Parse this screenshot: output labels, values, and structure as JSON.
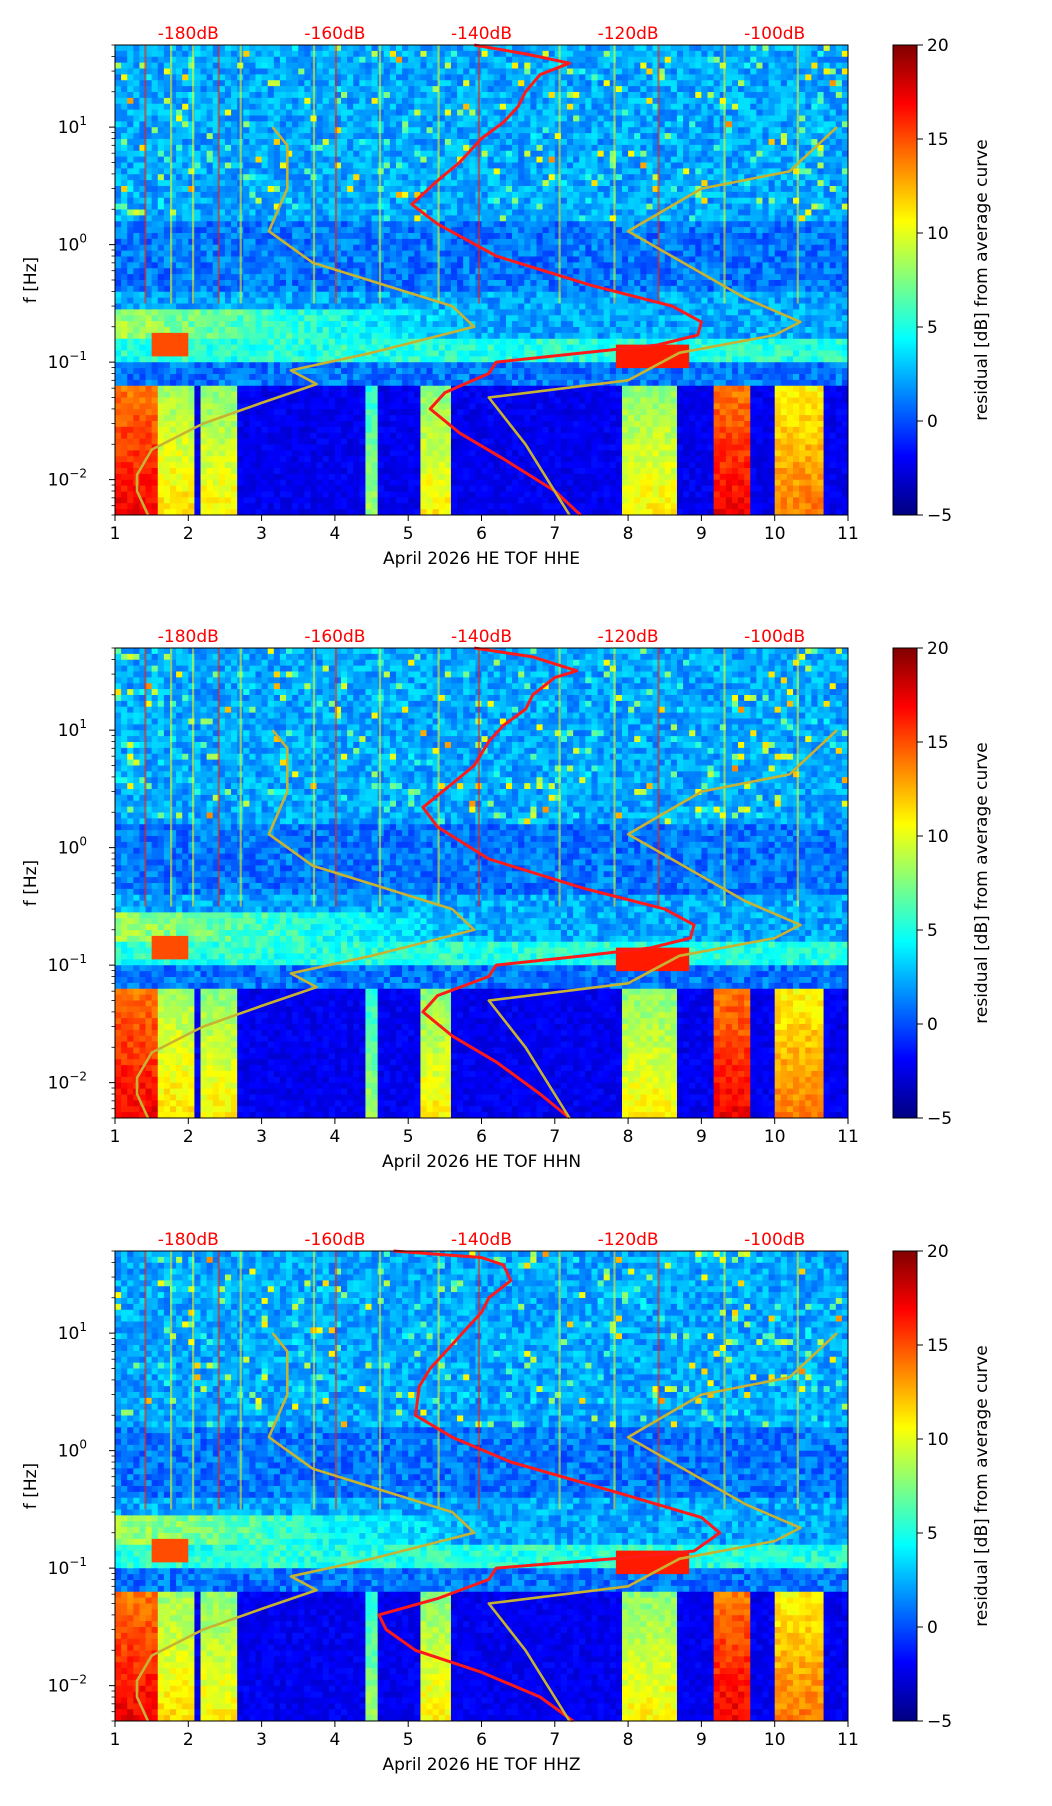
{
  "colors": {
    "curve_average": "#ff1a1a",
    "curve_model": "#c8b232",
    "top_label": "#ff0000",
    "colormap": [
      "#00007f",
      "#0000ff",
      "#007fff",
      "#00ffff",
      "#7fff7f",
      "#ffff00",
      "#ff7f00",
      "#ff0000",
      "#7f0000"
    ]
  },
  "shared": {
    "ylabel": "f [Hz]",
    "colorbar_label": "residual [dB] from average curve",
    "colorbar_range": [
      -5,
      20
    ],
    "colorbar_ticks": [
      "20",
      "15",
      "10",
      "5",
      "0",
      "−5"
    ],
    "x_ticks": [
      "1",
      "2",
      "3",
      "4",
      "5",
      "6",
      "7",
      "8",
      "9",
      "10",
      "11"
    ],
    "y_ticks": [
      {
        "base": "10",
        "exp": "1",
        "value": 10
      },
      {
        "base": "10",
        "exp": "0",
        "value": 1
      },
      {
        "base": "10",
        "exp": "−1",
        "value": 0.1
      },
      {
        "base": "10",
        "exp": "−2",
        "value": 0.01
      }
    ],
    "top_ticks": [
      {
        "label": "-180dB",
        "day": 2.0
      },
      {
        "label": "-160dB",
        "day": 4.0
      },
      {
        "label": "-140dB",
        "day": 6.0
      },
      {
        "label": "-120dB",
        "day": 8.0
      },
      {
        "label": "-100dB",
        "day": 10.0
      }
    ]
  },
  "chart_data": [
    {
      "type": "heatmap",
      "title": "",
      "xlabel": "April 2026 HE TOF  HHE",
      "ylabel": "f [Hz]",
      "xlim": [
        1,
        11
      ],
      "ylim_hz": [
        0.005,
        50
      ],
      "yscale": "log",
      "colorbar": {
        "label": "residual [dB] from average curve",
        "min": -5,
        "max": 20
      },
      "top_axis": {
        "labels": [
          "-180dB",
          "-160dB",
          "-140dB",
          "-120dB",
          "-100dB"
        ],
        "db_values": [
          -180,
          -160,
          -140,
          -120,
          -100
        ]
      },
      "series": [
        {
          "name": "average PSD curve",
          "color": "#ff1a1a",
          "points": [
            [
              7.35,
              0.005
            ],
            [
              7.0,
              0.008
            ],
            [
              6.3,
              0.015
            ],
            [
              5.7,
              0.025
            ],
            [
              5.3,
              0.04
            ],
            [
              5.5,
              0.055
            ],
            [
              6.1,
              0.08
            ],
            [
              6.2,
              0.1
            ],
            [
              7.4,
              0.12
            ],
            [
              8.4,
              0.14
            ],
            [
              8.95,
              0.17
            ],
            [
              9.0,
              0.22
            ],
            [
              8.6,
              0.3
            ],
            [
              7.5,
              0.45
            ],
            [
              6.2,
              0.8
            ],
            [
              5.4,
              1.5
            ],
            [
              5.05,
              2.2
            ],
            [
              5.4,
              3.5
            ],
            [
              5.7,
              5
            ],
            [
              6.0,
              8
            ],
            [
              6.3,
              11
            ],
            [
              6.5,
              15
            ],
            [
              6.6,
              20
            ],
            [
              6.8,
              28
            ],
            [
              7.2,
              35
            ],
            [
              6.6,
              42
            ],
            [
              5.9,
              50
            ]
          ]
        },
        {
          "name": "noise model curve",
          "color": "#c8b232",
          "points": [
            [
              1.45,
              0.005
            ],
            [
              1.3,
              0.008
            ],
            [
              1.3,
              0.011
            ],
            [
              1.5,
              0.018
            ],
            [
              2.2,
              0.03
            ],
            [
              3.0,
              0.045
            ],
            [
              3.75,
              0.065
            ],
            [
              3.4,
              0.085
            ],
            [
              4.5,
              0.12
            ],
            [
              5.9,
              0.2
            ],
            [
              5.6,
              0.3
            ],
            [
              3.7,
              0.7
            ],
            [
              3.1,
              1.3
            ],
            [
              3.35,
              3
            ],
            [
              3.35,
              7
            ],
            [
              3.15,
              10
            ]
          ]
        },
        {
          "name": "noise model curve (high)",
          "color": "#c8b232",
          "points": [
            [
              7.2,
              0.005
            ],
            [
              6.6,
              0.02
            ],
            [
              6.1,
              0.05
            ],
            [
              8.0,
              0.07
            ],
            [
              8.7,
              0.12
            ],
            [
              10.0,
              0.17
            ],
            [
              10.35,
              0.22
            ],
            [
              9.6,
              0.35
            ],
            [
              8.0,
              1.3
            ],
            [
              9.0,
              3
            ],
            [
              10.2,
              4.2
            ],
            [
              10.85,
              10
            ]
          ]
        }
      ]
    },
    {
      "type": "heatmap",
      "title": "",
      "xlabel": "April 2026 HE TOF  HHN",
      "ylabel": "f [Hz]",
      "xlim": [
        1,
        11
      ],
      "ylim_hz": [
        0.005,
        50
      ],
      "yscale": "log",
      "colorbar": {
        "label": "residual [dB] from average curve",
        "min": -5,
        "max": 20
      },
      "top_axis": {
        "labels": [
          "-180dB",
          "-160dB",
          "-140dB",
          "-120dB",
          "-100dB"
        ],
        "db_values": [
          -180,
          -160,
          -140,
          -120,
          -100
        ]
      },
      "series": [
        {
          "name": "average PSD curve",
          "color": "#ff1a1a",
          "points": [
            [
              7.2,
              0.005
            ],
            [
              6.8,
              0.008
            ],
            [
              6.2,
              0.015
            ],
            [
              5.6,
              0.025
            ],
            [
              5.2,
              0.04
            ],
            [
              5.4,
              0.055
            ],
            [
              6.1,
              0.08
            ],
            [
              6.2,
              0.1
            ],
            [
              7.4,
              0.12
            ],
            [
              8.3,
              0.14
            ],
            [
              8.85,
              0.17
            ],
            [
              8.9,
              0.22
            ],
            [
              8.5,
              0.3
            ],
            [
              7.4,
              0.45
            ],
            [
              6.1,
              0.8
            ],
            [
              5.4,
              1.5
            ],
            [
              5.2,
              2.2
            ],
            [
              5.6,
              3.5
            ],
            [
              5.9,
              5
            ],
            [
              6.1,
              8
            ],
            [
              6.3,
              11
            ],
            [
              6.6,
              15
            ],
            [
              6.7,
              20
            ],
            [
              7.0,
              28
            ],
            [
              7.3,
              32
            ],
            [
              6.7,
              42
            ],
            [
              5.9,
              50
            ]
          ]
        },
        {
          "name": "noise model curve",
          "color": "#c8b232",
          "points": [
            [
              1.45,
              0.005
            ],
            [
              1.3,
              0.008
            ],
            [
              1.3,
              0.011
            ],
            [
              1.5,
              0.018
            ],
            [
              2.2,
              0.03
            ],
            [
              3.0,
              0.045
            ],
            [
              3.75,
              0.065
            ],
            [
              3.4,
              0.085
            ],
            [
              4.5,
              0.12
            ],
            [
              5.9,
              0.2
            ],
            [
              5.6,
              0.3
            ],
            [
              3.7,
              0.7
            ],
            [
              3.1,
              1.3
            ],
            [
              3.35,
              3
            ],
            [
              3.35,
              7
            ],
            [
              3.15,
              10
            ]
          ]
        },
        {
          "name": "noise model curve (high)",
          "color": "#c8b232",
          "points": [
            [
              7.2,
              0.005
            ],
            [
              6.6,
              0.02
            ],
            [
              6.1,
              0.05
            ],
            [
              8.0,
              0.07
            ],
            [
              8.7,
              0.12
            ],
            [
              10.0,
              0.17
            ],
            [
              10.35,
              0.22
            ],
            [
              9.6,
              0.35
            ],
            [
              8.0,
              1.3
            ],
            [
              9.0,
              3
            ],
            [
              10.2,
              4.2
            ],
            [
              10.85,
              10
            ]
          ]
        }
      ]
    },
    {
      "type": "heatmap",
      "title": "",
      "xlabel": "April 2026 HE TOF  HHZ",
      "ylabel": "f [Hz]",
      "xlim": [
        1,
        11
      ],
      "ylim_hz": [
        0.005,
        50
      ],
      "yscale": "log",
      "colorbar": {
        "label": "residual [dB] from average curve",
        "min": -5,
        "max": 20
      },
      "top_axis": {
        "labels": [
          "-180dB",
          "-160dB",
          "-140dB",
          "-120dB",
          "-100dB"
        ],
        "db_values": [
          -180,
          -160,
          -140,
          -120,
          -100
        ]
      },
      "series": [
        {
          "name": "average PSD curve",
          "color": "#ff1a1a",
          "points": [
            [
              7.25,
              0.005
            ],
            [
              6.8,
              0.008
            ],
            [
              6.0,
              0.013
            ],
            [
              5.1,
              0.02
            ],
            [
              4.7,
              0.03
            ],
            [
              4.6,
              0.04
            ],
            [
              5.4,
              0.055
            ],
            [
              6.1,
              0.08
            ],
            [
              6.2,
              0.1
            ],
            [
              7.8,
              0.12
            ],
            [
              8.9,
              0.14
            ],
            [
              9.25,
              0.2
            ],
            [
              9.0,
              0.27
            ],
            [
              7.8,
              0.45
            ],
            [
              6.4,
              0.8
            ],
            [
              5.6,
              1.3
            ],
            [
              5.1,
              2.0
            ],
            [
              5.15,
              3.5
            ],
            [
              5.3,
              5
            ],
            [
              5.6,
              8
            ],
            [
              5.8,
              11
            ],
            [
              6.0,
              15
            ],
            [
              6.1,
              20
            ],
            [
              6.4,
              28
            ],
            [
              6.3,
              38
            ],
            [
              6.0,
              44
            ],
            [
              4.8,
              50
            ]
          ]
        },
        {
          "name": "noise model curve",
          "color": "#c8b232",
          "points": [
            [
              1.45,
              0.005
            ],
            [
              1.3,
              0.008
            ],
            [
              1.3,
              0.011
            ],
            [
              1.5,
              0.018
            ],
            [
              2.2,
              0.03
            ],
            [
              3.0,
              0.045
            ],
            [
              3.75,
              0.065
            ],
            [
              3.4,
              0.085
            ],
            [
              4.5,
              0.12
            ],
            [
              5.9,
              0.2
            ],
            [
              5.6,
              0.3
            ],
            [
              3.7,
              0.7
            ],
            [
              3.1,
              1.3
            ],
            [
              3.35,
              3
            ],
            [
              3.35,
              7
            ],
            [
              3.15,
              10
            ]
          ]
        },
        {
          "name": "noise model curve (high)",
          "color": "#c8b232",
          "points": [
            [
              7.2,
              0.005
            ],
            [
              6.6,
              0.02
            ],
            [
              6.1,
              0.05
            ],
            [
              8.0,
              0.07
            ],
            [
              8.7,
              0.12
            ],
            [
              10.0,
              0.17
            ],
            [
              10.35,
              0.22
            ],
            [
              9.6,
              0.35
            ],
            [
              8.0,
              1.3
            ],
            [
              9.0,
              3
            ],
            [
              10.2,
              4.2
            ],
            [
              10.85,
              10
            ]
          ]
        }
      ]
    }
  ]
}
